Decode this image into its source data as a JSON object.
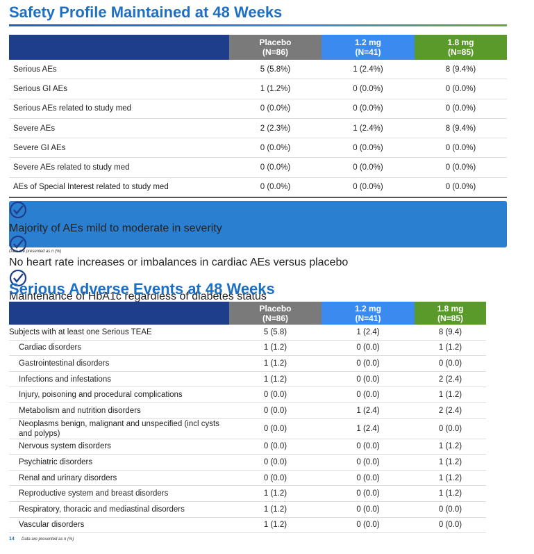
{
  "section1": {
    "title": "Safety Profile Maintained at 48 Weeks",
    "columns": [
      {
        "name": "Placebo",
        "n": "(N=86)"
      },
      {
        "name": "1.2 mg",
        "n": "(N=41)"
      },
      {
        "name": "1.8 mg",
        "n": "(N=85)"
      }
    ],
    "rows": [
      [
        "Serious AEs",
        "5 (5.8%)",
        "1 (2.4%)",
        "8 (9.4%)"
      ],
      [
        "Serious GI AEs",
        "1 (1.2%)",
        "0 (0.0%)",
        "0 (0.0%)"
      ],
      [
        "Serious AEs related to study med",
        "0 (0.0%)",
        "0 (0.0%)",
        "0 (0.0%)"
      ],
      [
        "Severe AEs",
        "2 (2.3%)",
        "1 (2.4%)",
        "8 (9.4%)"
      ],
      [
        "Severe GI AEs",
        "0 (0.0%)",
        "0 (0.0%)",
        "0 (0.0%)"
      ],
      [
        "Severe AEs related to study med",
        "0 (0.0%)",
        "0 (0.0%)",
        "0 (0.0%)"
      ],
      [
        "AEs of Special Interest related to study med",
        "0 (0.0%)",
        "0 (0.0%)",
        "0 (0.0%)"
      ]
    ],
    "callouts": [
      "Majority of AEs mild to moderate in severity",
      "No heart rate increases or imbalances in cardiac AEs versus placebo",
      "Maintenance of HbA1c regardless of diabetes status"
    ],
    "footnote": "Data are presented as n (%)"
  },
  "section2": {
    "title": "Serious Adverse Events at 48 Weeks",
    "columns": [
      {
        "name": "Placebo",
        "n": "(N=86)"
      },
      {
        "name": "1.2 mg",
        "n": "(N=41)"
      },
      {
        "name": "1.8 mg",
        "n": "(N=85)"
      }
    ],
    "rows": [
      [
        "Subjects with at least one Serious TEAE",
        "5 (5.8)",
        "1 (2.4)",
        "8 (9.4)"
      ],
      [
        "Cardiac disorders",
        "1 (1.2)",
        "0 (0.0)",
        "1 (1.2)"
      ],
      [
        "Gastrointestinal disorders",
        "1 (1.2)",
        "0 (0.0)",
        "0 (0.0)"
      ],
      [
        "Infections and infestations",
        "1 (1.2)",
        "0 (0.0)",
        "2 (2.4)"
      ],
      [
        "Injury, poisoning and procedural complications",
        "0 (0.0)",
        "0 (0.0)",
        "1 (1.2)"
      ],
      [
        "Metabolism and nutrition disorders",
        "0 (0.0)",
        "1 (2.4)",
        "2 (2.4)"
      ],
      [
        "Neoplasms benign, malignant and unspecified (incl cysts and polyps)",
        "0 (0.0)",
        "1 (2.4)",
        "0 (0.0)"
      ],
      [
        "Nervous system disorders",
        "0 (0.0)",
        "0 (0.0)",
        "1 (1.2)"
      ],
      [
        "Psychiatric disorders",
        "0 (0.0)",
        "0 (0.0)",
        "1 (1.2)"
      ],
      [
        "Renal and urinary disorders",
        "0 (0.0)",
        "0 (0.0)",
        "1 (1.2)"
      ],
      [
        "Reproductive system and breast disorders",
        "1 (1.2)",
        "0 (0.0)",
        "1 (1.2)"
      ],
      [
        "Respiratory, thoracic and mediastinal disorders",
        "1 (1.2)",
        "0 (0.0)",
        "0 (0.0)"
      ],
      [
        "Vascular disorders",
        "1 (1.2)",
        "0 (0.0)",
        "0 (0.0)"
      ]
    ],
    "footnote": "Data are presented as n (%)"
  },
  "page_number": "14"
}
